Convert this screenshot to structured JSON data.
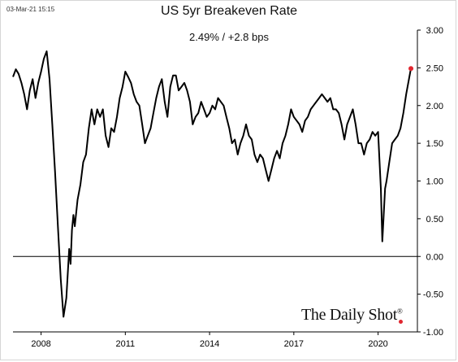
{
  "header": {
    "timestamp": "03-Mar-21 15:15",
    "title": "US 5yr Breakeven Rate",
    "subtitle": "2.49%  /  +2.8 bps"
  },
  "brand": {
    "name": "The Daily Shot",
    "mark": "®",
    "accent": "#e0262f"
  },
  "chart_data": {
    "type": "line",
    "title": "US 5yr Breakeven Rate",
    "ylim": [
      -1.0,
      3.0
    ],
    "xlim": [
      2007.0,
      2021.4
    ],
    "y_ticks": [
      3.0,
      2.5,
      2.0,
      1.5,
      1.0,
      0.5,
      0.0,
      -0.5,
      -1.0
    ],
    "y_tick_labels": [
      "3.00",
      "2.50",
      "2.00",
      "1.50",
      "1.00",
      "0.50",
      "0.00",
      "-0.50",
      "-1.00"
    ],
    "x_ticks": [
      2008,
      2011,
      2014,
      2017,
      2020
    ],
    "x_tick_labels": [
      "2008",
      "2011",
      "2014",
      "2017",
      "2020"
    ],
    "y_axis_side": "right",
    "zero_line": true,
    "grid": false,
    "last_value": 2.49,
    "last_point_color": "#e0262f",
    "line_color": "#000000",
    "series": [
      {
        "x": [
          2007.0,
          2007.1,
          2007.2,
          2007.3,
          2007.4,
          2007.5,
          2007.6,
          2007.7,
          2007.8,
          2007.9,
          2008.0,
          2008.1,
          2008.2,
          2008.3,
          2008.4,
          2008.5,
          2008.6,
          2008.7,
          2008.8,
          2008.9,
          2009.0,
          2009.05,
          2009.1,
          2009.15,
          2009.2,
          2009.3,
          2009.4,
          2009.5,
          2009.6,
          2009.7,
          2009.8,
          2009.9,
          2010.0,
          2010.1,
          2010.2,
          2010.3,
          2010.4,
          2010.5,
          2010.6,
          2010.7,
          2010.8,
          2010.9,
          2011.0,
          2011.1,
          2011.2,
          2011.3,
          2011.4,
          2011.5,
          2011.6,
          2011.7,
          2011.8,
          2011.9,
          2012.0,
          2012.1,
          2012.2,
          2012.3,
          2012.4,
          2012.5,
          2012.6,
          2012.7,
          2012.8,
          2012.9,
          2013.0,
          2013.1,
          2013.2,
          2013.3,
          2013.4,
          2013.5,
          2013.6,
          2013.7,
          2013.8,
          2013.9,
          2014.0,
          2014.1,
          2014.2,
          2014.3,
          2014.4,
          2014.5,
          2014.6,
          2014.7,
          2014.8,
          2014.9,
          2015.0,
          2015.1,
          2015.2,
          2015.3,
          2015.4,
          2015.5,
          2015.6,
          2015.7,
          2015.8,
          2015.9,
          2016.0,
          2016.1,
          2016.2,
          2016.3,
          2016.4,
          2016.5,
          2016.6,
          2016.7,
          2016.8,
          2016.9,
          2017.0,
          2017.1,
          2017.2,
          2017.3,
          2017.4,
          2017.5,
          2017.6,
          2017.7,
          2017.8,
          2017.9,
          2018.0,
          2018.1,
          2018.2,
          2018.3,
          2018.4,
          2018.5,
          2018.6,
          2018.7,
          2018.8,
          2018.9,
          2019.0,
          2019.1,
          2019.2,
          2019.3,
          2019.4,
          2019.5,
          2019.6,
          2019.7,
          2019.8,
          2019.9,
          2020.0,
          2020.1,
          2020.15,
          2020.2,
          2020.25,
          2020.3,
          2020.4,
          2020.5,
          2020.6,
          2020.7,
          2020.8,
          2020.9,
          2021.0,
          2021.1,
          2021.17
        ],
        "values": [
          2.38,
          2.48,
          2.42,
          2.3,
          2.15,
          1.95,
          2.2,
          2.35,
          2.1,
          2.3,
          2.45,
          2.62,
          2.72,
          2.35,
          1.75,
          1.1,
          0.4,
          -0.3,
          -0.8,
          -0.55,
          0.1,
          -0.1,
          0.35,
          0.55,
          0.4,
          0.75,
          0.95,
          1.25,
          1.35,
          1.7,
          1.95,
          1.75,
          1.95,
          1.85,
          1.95,
          1.6,
          1.45,
          1.7,
          1.65,
          1.85,
          2.1,
          2.25,
          2.45,
          2.38,
          2.3,
          2.15,
          2.05,
          2.0,
          1.75,
          1.5,
          1.6,
          1.7,
          1.9,
          2.1,
          2.25,
          2.35,
          2.05,
          1.85,
          2.25,
          2.4,
          2.4,
          2.2,
          2.25,
          2.3,
          2.2,
          2.05,
          1.75,
          1.85,
          1.9,
          2.05,
          1.95,
          1.85,
          1.9,
          2.0,
          1.95,
          2.1,
          2.05,
          2.0,
          1.85,
          1.7,
          1.5,
          1.55,
          1.35,
          1.5,
          1.6,
          1.75,
          1.6,
          1.55,
          1.35,
          1.25,
          1.35,
          1.3,
          1.15,
          1.0,
          1.15,
          1.3,
          1.4,
          1.3,
          1.5,
          1.6,
          1.75,
          1.95,
          1.85,
          1.8,
          1.75,
          1.65,
          1.8,
          1.85,
          1.95,
          2.0,
          2.05,
          2.1,
          2.15,
          2.1,
          2.05,
          2.1,
          1.95,
          1.95,
          1.9,
          1.75,
          1.55,
          1.75,
          1.85,
          1.95,
          1.75,
          1.5,
          1.5,
          1.35,
          1.5,
          1.55,
          1.65,
          1.6,
          1.65,
          0.9,
          0.2,
          0.55,
          0.9,
          1.0,
          1.25,
          1.5,
          1.55,
          1.6,
          1.7,
          1.9,
          2.15,
          2.35,
          2.49
        ]
      }
    ]
  }
}
